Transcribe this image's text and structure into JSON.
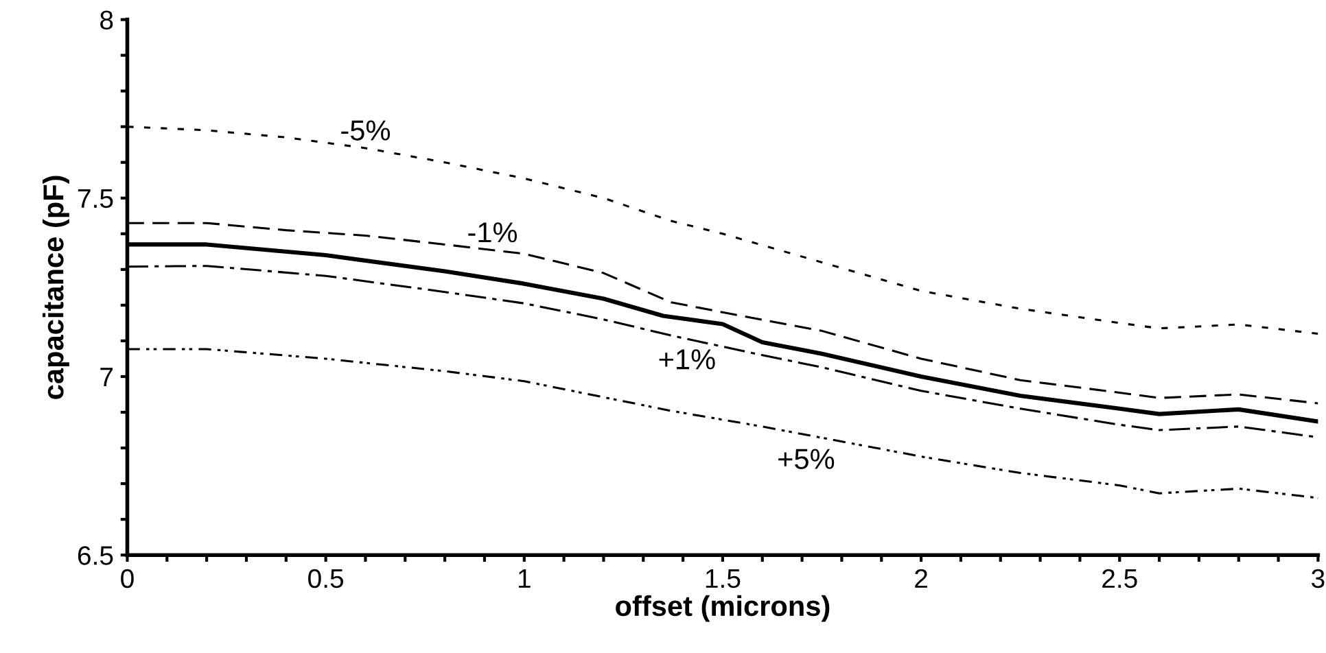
{
  "chart_data": {
    "type": "line",
    "xlabel": "offset (microns)",
    "ylabel": "capacitance (pF)",
    "xlim": [
      0,
      3
    ],
    "ylim": [
      6.5,
      8
    ],
    "xticks": [
      0,
      {
        "value": 0.1,
        "label": null
      },
      {
        "value": 0.2,
        "label": null
      },
      {
        "value": 0.3,
        "label": null
      },
      {
        "value": 0.4,
        "label": null
      },
      0.5,
      {
        "value": 0.6,
        "label": null
      },
      {
        "value": 0.7,
        "label": null
      },
      {
        "value": 0.8,
        "label": null
      },
      {
        "value": 0.9,
        "label": null
      },
      1,
      {
        "value": 1.1,
        "label": null
      },
      {
        "value": 1.2,
        "label": null
      },
      {
        "value": 1.3,
        "label": null
      },
      {
        "value": 1.4,
        "label": null
      },
      1.5,
      {
        "value": 1.6,
        "label": null
      },
      {
        "value": 1.7,
        "label": null
      },
      {
        "value": 1.8,
        "label": null
      },
      {
        "value": 1.9,
        "label": null
      },
      2,
      {
        "value": 2.1,
        "label": null
      },
      {
        "value": 2.2,
        "label": null
      },
      {
        "value": 2.3,
        "label": null
      },
      {
        "value": 2.4,
        "label": null
      },
      2.5,
      {
        "value": 2.6,
        "label": null
      },
      {
        "value": 2.7,
        "label": null
      },
      {
        "value": 2.8,
        "label": null
      },
      {
        "value": 2.9,
        "label": null
      },
      3
    ],
    "yticks": [
      6.5,
      {
        "value": 6.6,
        "label": null
      },
      {
        "value": 6.7,
        "label": null
      },
      {
        "value": 6.8,
        "label": null
      },
      {
        "value": 6.9,
        "label": null
      },
      7,
      {
        "value": 7.1,
        "label": null
      },
      {
        "value": 7.2,
        "label": null
      },
      {
        "value": 7.3,
        "label": null
      },
      {
        "value": 7.4,
        "label": null
      },
      7.5,
      {
        "value": 7.6,
        "label": null
      },
      {
        "value": 7.7,
        "label": null
      },
      {
        "value": 7.8,
        "label": null
      },
      {
        "value": 7.9,
        "label": null
      },
      8
    ],
    "grid": false,
    "series": [
      {
        "name": "-5%",
        "color": "#000000",
        "line_style": "dotted",
        "x": [
          0,
          0.2,
          0.4,
          0.6,
          0.8,
          1,
          1.2,
          1.37,
          1.5,
          1.75,
          2,
          2.25,
          2.5,
          2.6,
          2.8,
          3
        ],
        "values": [
          7.7,
          7.69,
          7.67,
          7.64,
          7.6,
          7.555,
          7.5,
          7.436,
          7.4,
          7.32,
          7.24,
          7.19,
          7.15,
          7.135,
          7.146,
          7.12
        ]
      },
      {
        "name": "-1%",
        "color": "#000000",
        "line_style": "dashed",
        "x": [
          0,
          0.2,
          0.4,
          0.6,
          0.8,
          1,
          1.2,
          1.37,
          1.5,
          1.75,
          2,
          2.25,
          2.5,
          2.6,
          2.8,
          3
        ],
        "values": [
          7.43,
          7.43,
          7.41,
          7.395,
          7.37,
          7.344,
          7.29,
          7.208,
          7.18,
          7.128,
          7.05,
          6.99,
          6.955,
          6.94,
          6.95,
          6.925
        ]
      },
      {
        "color": "#000000",
        "line_style": "solid",
        "x": [
          0,
          0.2,
          0.5,
          0.8,
          1,
          1.2,
          1.35,
          1.5,
          1.6,
          1.75,
          2,
          2.25,
          2.5,
          2.6,
          2.8,
          3
        ],
        "values": [
          7.37,
          7.37,
          7.34,
          7.295,
          7.26,
          7.218,
          7.17,
          7.147,
          7.096,
          7.064,
          7.0,
          6.946,
          6.91,
          6.895,
          6.908,
          6.874
        ]
      },
      {
        "name": "+1%",
        "color": "#000000",
        "line_style": "dashdot",
        "x": [
          0,
          0.2,
          0.5,
          0.8,
          1,
          1.2,
          1.37,
          1.6,
          1.75,
          2,
          2.25,
          2.5,
          2.6,
          2.8,
          3
        ],
        "values": [
          7.308,
          7.31,
          7.282,
          7.237,
          7.205,
          7.16,
          7.115,
          7.06,
          7.026,
          6.96,
          6.91,
          6.865,
          6.85,
          6.86,
          6.83
        ]
      },
      {
        "name": "+5%",
        "color": "#000000",
        "line_style": "dashdotdot",
        "x": [
          0,
          0.2,
          0.5,
          0.8,
          1,
          1.37,
          1.6,
          2,
          2.25,
          2.5,
          2.6,
          2.8,
          3
        ],
        "values": [
          7.077,
          7.077,
          7.05,
          7.015,
          6.987,
          6.904,
          6.86,
          6.776,
          6.73,
          6.695,
          6.673,
          6.686,
          6.66
        ]
      }
    ]
  }
}
